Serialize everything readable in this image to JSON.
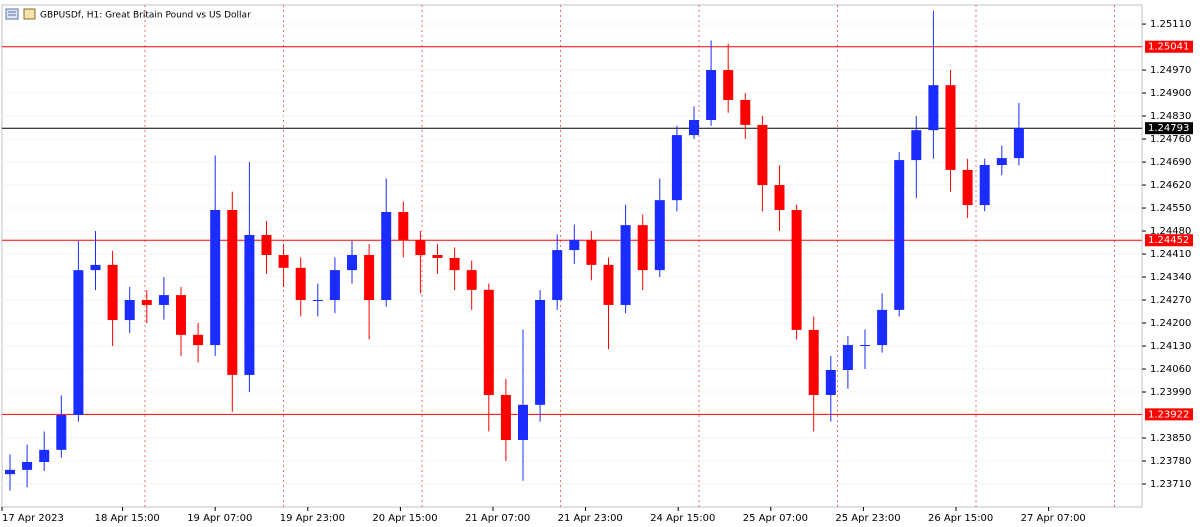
{
  "chart_data": {
    "type": "candlestick",
    "title": "GBPUSDf, H1:  Great Britain Pound vs US Dollar",
    "up_color": "#1a2cff",
    "down_color": "#ff0000",
    "grid": true,
    "open": [
      1.2374,
      1.23753,
      1.23777,
      1.23814,
      1.2392,
      1.24361,
      1.24377,
      1.24209,
      1.2427,
      1.24255,
      1.24285,
      1.24164,
      1.24133,
      1.24544,
      1.24042,
      1.24468,
      1.24407,
      1.24368,
      1.2427,
      1.2427,
      1.24361,
      1.24407,
      1.2427,
      1.24538,
      1.24453,
      1.24407,
      1.24398,
      1.24361,
      1.24301,
      1.23981,
      1.23844,
      1.23951,
      1.2427,
      1.24422,
      1.24453,
      1.24377,
      1.24255,
      1.24498,
      1.24361,
      1.24574,
      1.24772,
      1.24818,
      1.2497,
      1.24879,
      1.24803,
      1.2462,
      1.24544,
      1.24179,
      1.23981,
      1.24057,
      1.24133,
      1.24133,
      1.2424,
      1.24696,
      1.24787,
      1.24924,
      1.24666,
      1.24559,
      1.24681,
      1.24702
    ],
    "high": [
      1.238,
      1.2383,
      1.2387,
      1.2398,
      1.2445,
      1.2448,
      1.2442,
      1.2431,
      1.243,
      1.2434,
      1.2431,
      1.242,
      1.2471,
      1.246,
      1.2469,
      1.2451,
      1.2444,
      1.244,
      1.2432,
      1.244,
      1.2445,
      1.2444,
      1.2464,
      1.2457,
      1.2448,
      1.2444,
      1.2443,
      1.2439,
      1.2432,
      1.2403,
      1.2418,
      1.243,
      1.2447,
      1.245,
      1.2448,
      1.244,
      1.2456,
      1.2453,
      1.2464,
      1.248,
      1.2486,
      1.2506,
      1.2505,
      1.249,
      1.2483,
      1.2468,
      1.2456,
      1.2422,
      1.241,
      1.2416,
      1.2418,
      1.2429,
      1.2472,
      1.2483,
      1.2515,
      1.2497,
      1.247,
      1.247,
      1.2474,
      1.2487
    ],
    "low": [
      1.2369,
      1.237,
      1.2375,
      1.2379,
      1.239,
      1.243,
      1.2413,
      1.2417,
      1.242,
      1.2421,
      1.241,
      1.2408,
      1.241,
      1.2393,
      1.2399,
      1.2435,
      1.2431,
      1.2422,
      1.2422,
      1.2423,
      1.2432,
      1.2415,
      1.2425,
      1.244,
      1.2429,
      1.2435,
      1.243,
      1.2424,
      1.2387,
      1.2378,
      1.2372,
      1.239,
      1.2424,
      1.2438,
      1.2433,
      1.2412,
      1.2423,
      1.243,
      1.2434,
      1.2454,
      1.2476,
      1.248,
      1.2484,
      1.2476,
      1.2454,
      1.2448,
      1.2415,
      1.2387,
      1.239,
      1.24,
      1.2406,
      1.2411,
      1.2422,
      1.2458,
      1.247,
      1.246,
      1.2452,
      1.2454,
      1.2465,
      1.2468
    ],
    "close": [
      1.23753,
      1.23777,
      1.23814,
      1.2392,
      1.24361,
      1.24377,
      1.24209,
      1.2427,
      1.24255,
      1.24285,
      1.24164,
      1.24133,
      1.24544,
      1.24042,
      1.24468,
      1.24407,
      1.24368,
      1.2427,
      1.2427,
      1.24361,
      1.24407,
      1.2427,
      1.24538,
      1.24453,
      1.24407,
      1.24398,
      1.24361,
      1.24301,
      1.23981,
      1.23844,
      1.23951,
      1.2427,
      1.24422,
      1.24453,
      1.24377,
      1.24255,
      1.24498,
      1.24361,
      1.24574,
      1.24772,
      1.24818,
      1.2497,
      1.24879,
      1.24803,
      1.2462,
      1.24544,
      1.24179,
      1.23981,
      1.24057,
      1.24133,
      1.24133,
      1.2424,
      1.24696,
      1.24787,
      1.24924,
      1.24666,
      1.24559,
      1.24681,
      1.24702,
      1.24793
    ],
    "ylim": [
      1.2364,
      1.25168
    ],
    "yticks": [
      {
        "value": 1.2511,
        "label": "1.25110"
      },
      {
        "value": 1.2497,
        "label": "1.24970"
      },
      {
        "value": 1.249,
        "label": "1.24900"
      },
      {
        "value": 1.2483,
        "label": "1.24830"
      },
      {
        "value": 1.2476,
        "label": "1.24760"
      },
      {
        "value": 1.2469,
        "label": "1.24690"
      },
      {
        "value": 1.2462,
        "label": "1.24620"
      },
      {
        "value": 1.2455,
        "label": "1.24550"
      },
      {
        "value": 1.2448,
        "label": "1.24480"
      },
      {
        "value": 1.2441,
        "label": "1.24410"
      },
      {
        "value": 1.2434,
        "label": "1.24340"
      },
      {
        "value": 1.2427,
        "label": "1.24270"
      },
      {
        "value": 1.242,
        "label": "1.24200"
      },
      {
        "value": 1.2413,
        "label": "1.24130"
      },
      {
        "value": 1.2406,
        "label": "1.24060"
      },
      {
        "value": 1.2399,
        "label": "1.23990"
      },
      {
        "value": 1.2385,
        "label": "1.23850"
      },
      {
        "value": 1.2378,
        "label": "1.23780"
      },
      {
        "value": 1.2371,
        "label": "1.23710"
      }
    ],
    "xticks": [
      "17 Apr 2023",
      "18 Apr 15:00",
      "19 Apr 07:00",
      "19 Apr 23:00",
      "20 Apr 15:00",
      "21 Apr 07:00",
      "21 Apr 23:00",
      "24 Apr 15:00",
      "25 Apr 07:00",
      "25 Apr 23:00",
      "26 Apr 15:00",
      "27 Apr 07:00"
    ],
    "levels": [
      {
        "value": 1.25041,
        "color": "#ff0000"
      },
      {
        "value": 1.24452,
        "color": "#ff0000"
      },
      {
        "value": 1.23922,
        "color": "#ff0000"
      }
    ],
    "current_price": {
      "value": 1.24793,
      "color": "#000000"
    }
  }
}
